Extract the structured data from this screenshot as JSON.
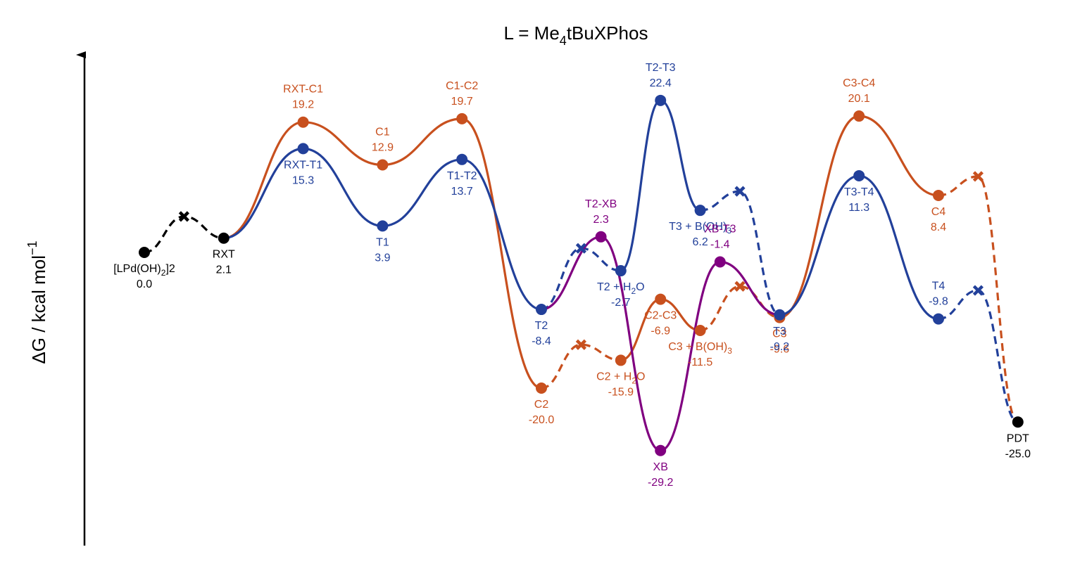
{
  "chart_data": {
    "type": "line",
    "title": "L = Me4tBuXPhos",
    "ylabel": "ΔG / kcal mol−1",
    "ylim": [
      -36,
      31
    ],
    "colors": {
      "black": "#000000",
      "orange": "#c8501e",
      "blue": "#22409a",
      "purple": "#800080"
    },
    "nodes": [
      {
        "id": "L0",
        "label": "[LPd(OH)2]2",
        "value": 0.0,
        "value_text": "0.0",
        "color": "black",
        "x": 0,
        "anchor": "below"
      },
      {
        "id": "RXT",
        "label": "RXT",
        "value": 2.1,
        "value_text": "2.1",
        "color": "black",
        "x": 2,
        "anchor": "below"
      },
      {
        "id": "RXTC1",
        "label": "RXT-C1",
        "value": 19.2,
        "value_text": "19.2",
        "color": "orange",
        "x": 4,
        "anchor": "above"
      },
      {
        "id": "C1",
        "label": "C1",
        "value": 12.9,
        "value_text": "12.9",
        "color": "orange",
        "x": 6,
        "anchor": "above"
      },
      {
        "id": "C1C2",
        "label": "C1-C2",
        "value": 19.7,
        "value_text": "19.7",
        "color": "orange",
        "x": 8,
        "anchor": "above"
      },
      {
        "id": "C2",
        "label": "C2",
        "value": -20.0,
        "value_text": "-20.0",
        "color": "orange",
        "x": 10,
        "anchor": "below"
      },
      {
        "id": "C2H2O",
        "label": "C2 + H2O",
        "value": -15.9,
        "value_text": "-15.9",
        "color": "orange",
        "x": 12,
        "anchor": "below"
      },
      {
        "id": "C2C3",
        "label": "C2-C3",
        "value": -6.9,
        "value_text": "-6.9",
        "color": "orange",
        "x": 13,
        "anchor": "below"
      },
      {
        "id": "C3BOH3",
        "label": "C3 + B(OH)3",
        "value": -11.5,
        "value_text": "-11.5",
        "color": "orange",
        "x": 14,
        "anchor": "below"
      },
      {
        "id": "C3",
        "label": "C3",
        "value": -9.6,
        "value_text": "-9.6",
        "color": "orange",
        "x": 16,
        "anchor": "below"
      },
      {
        "id": "C3C4",
        "label": "C3-C4",
        "value": 20.1,
        "value_text": "20.1",
        "color": "orange",
        "x": 18,
        "anchor": "above"
      },
      {
        "id": "C4",
        "label": "C4",
        "value": 8.4,
        "value_text": "8.4",
        "color": "orange",
        "x": 20,
        "anchor": "below"
      },
      {
        "id": "RXTT1",
        "label": "RXT-T1",
        "value": 15.3,
        "value_text": "15.3",
        "color": "blue",
        "x": 4,
        "anchor": "below"
      },
      {
        "id": "T1",
        "label": "T1",
        "value": 3.9,
        "value_text": "3.9",
        "color": "blue",
        "x": 6,
        "anchor": "below"
      },
      {
        "id": "T1T2",
        "label": "T1-T2",
        "value": 13.7,
        "value_text": "13.7",
        "color": "blue",
        "x": 8,
        "anchor": "below"
      },
      {
        "id": "T2",
        "label": "T2",
        "value": -8.4,
        "value_text": "-8.4",
        "color": "blue",
        "x": 10,
        "anchor": "below"
      },
      {
        "id": "T2H2O",
        "label": "T2 + H2O",
        "value": -2.7,
        "value_text": "-2.7",
        "color": "blue",
        "x": 12,
        "anchor": "below"
      },
      {
        "id": "T2T3",
        "label": "T2-T3",
        "value": 22.4,
        "value_text": "22.4",
        "color": "blue",
        "x": 13,
        "anchor": "above"
      },
      {
        "id": "T3BOH3",
        "label": "T3 + B(OH)3",
        "value": 6.2,
        "value_text": "6.2",
        "color": "blue",
        "x": 14,
        "anchor": "below"
      },
      {
        "id": "T3",
        "label": "T3",
        "value": -9.2,
        "value_text": "-9.2",
        "color": "blue",
        "x": 16,
        "anchor": "below"
      },
      {
        "id": "T3T4",
        "label": "T3-T4",
        "value": 11.3,
        "value_text": "11.3",
        "color": "blue",
        "x": 18,
        "anchor": "below"
      },
      {
        "id": "T4",
        "label": "T4",
        "value": -9.8,
        "value_text": "-9.8",
        "color": "blue",
        "x": 20,
        "anchor": "above"
      },
      {
        "id": "T2XB",
        "label": "T2-XB",
        "value": 2.3,
        "value_text": "2.3",
        "color": "purple",
        "x": 11.5,
        "anchor": "above"
      },
      {
        "id": "XB",
        "label": "XB",
        "value": -29.2,
        "value_text": "-29.2",
        "color": "purple",
        "x": 13,
        "anchor": "below"
      },
      {
        "id": "XBT3",
        "label": "XB-T3",
        "value": -1.4,
        "value_text": "-1.4",
        "color": "purple",
        "x": 14.5,
        "anchor": "above"
      },
      {
        "id": "PDT",
        "label": "PDT",
        "value": -25.0,
        "value_text": "-25.0",
        "color": "black",
        "x": 22,
        "anchor": "below"
      }
    ],
    "connections": [
      {
        "color": "black",
        "dash": true,
        "x": [
          0,
          1,
          2
        ],
        "y": [
          0.0,
          5.3,
          2.1
        ]
      },
      {
        "color": "orange",
        "dash": false,
        "x": [
          2,
          4,
          6,
          8,
          10
        ],
        "y": [
          2.1,
          19.2,
          12.9,
          19.7,
          -20.0
        ]
      },
      {
        "color": "orange",
        "dash": true,
        "x": [
          10,
          11,
          12
        ],
        "y": [
          -20.0,
          -13.6,
          -15.9
        ]
      },
      {
        "color": "orange",
        "dash": false,
        "x": [
          12,
          13,
          14
        ],
        "y": [
          -15.9,
          -6.9,
          -11.5
        ]
      },
      {
        "color": "orange",
        "dash": true,
        "x": [
          14,
          15,
          16
        ],
        "y": [
          -11.5,
          -5.0,
          -9.6
        ]
      },
      {
        "color": "orange",
        "dash": false,
        "x": [
          16,
          18,
          20
        ],
        "y": [
          -9.6,
          20.1,
          8.4
        ]
      },
      {
        "color": "orange",
        "dash": true,
        "x": [
          20,
          21,
          22
        ],
        "y": [
          8.4,
          11.2,
          -25.0
        ]
      },
      {
        "color": "blue",
        "dash": false,
        "x": [
          2,
          4,
          6,
          8,
          10
        ],
        "y": [
          2.1,
          15.3,
          3.9,
          13.7,
          -8.4
        ]
      },
      {
        "color": "blue",
        "dash": true,
        "x": [
          10,
          11,
          12
        ],
        "y": [
          -8.4,
          0.6,
          -2.7
        ]
      },
      {
        "color": "blue",
        "dash": false,
        "x": [
          12,
          13,
          14
        ],
        "y": [
          -2.7,
          22.4,
          6.2
        ]
      },
      {
        "color": "blue",
        "dash": true,
        "x": [
          14,
          15,
          16
        ],
        "y": [
          6.2,
          9.0,
          -9.2
        ]
      },
      {
        "color": "blue",
        "dash": false,
        "x": [
          16,
          18,
          20
        ],
        "y": [
          -9.2,
          11.3,
          -9.8
        ]
      },
      {
        "color": "blue",
        "dash": true,
        "x": [
          20,
          21,
          22
        ],
        "y": [
          -9.8,
          -5.6,
          -25.0
        ]
      },
      {
        "color": "purple",
        "dash": false,
        "x": [
          10,
          11.5,
          13,
          14.5,
          16
        ],
        "y": [
          -8.4,
          2.3,
          -29.2,
          -1.4,
          -9.2
        ]
      }
    ],
    "cross_points": [
      {
        "color": "black",
        "x": 1,
        "y": 5.3
      },
      {
        "color": "orange",
        "x": 11,
        "y": -13.6
      },
      {
        "color": "orange",
        "x": 15,
        "y": -5.0
      },
      {
        "color": "orange",
        "x": 21,
        "y": 11.2
      },
      {
        "color": "blue",
        "x": 11,
        "y": 0.6
      },
      {
        "color": "blue",
        "x": 15,
        "y": 9.0
      },
      {
        "color": "blue",
        "x": 21,
        "y": -5.6
      }
    ]
  }
}
